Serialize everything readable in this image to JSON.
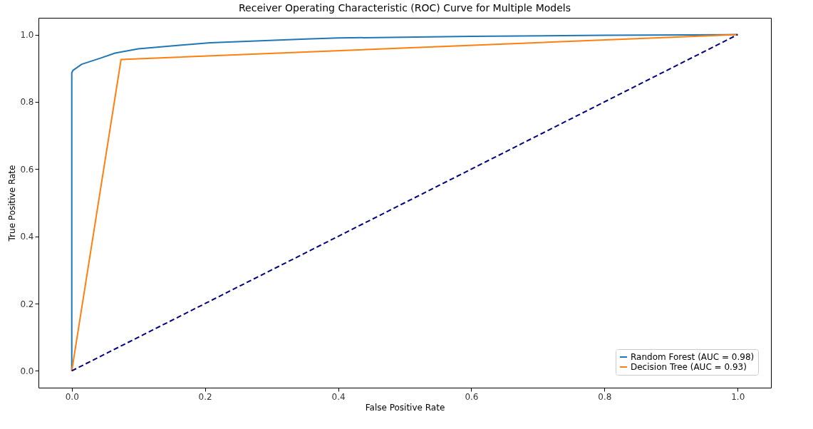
{
  "chart_data": {
    "type": "line",
    "title": "Receiver Operating Characteristic (ROC) Curve for Multiple Models",
    "xlabel": "False Positive Rate",
    "ylabel": "True Positive Rate",
    "xlim": [
      -0.05,
      1.05
    ],
    "ylim": [
      -0.05,
      1.05
    ],
    "xticks": [
      {
        "value": 0,
        "label": "0.0"
      },
      {
        "value": 0.2,
        "label": "0.2"
      },
      {
        "value": 0.4,
        "label": "0.4"
      },
      {
        "value": 0.6,
        "label": "0.6"
      },
      {
        "value": 0.8,
        "label": "0.8"
      },
      {
        "value": 1,
        "label": "1.0"
      }
    ],
    "yticks": [
      {
        "value": 0,
        "label": "0.0"
      },
      {
        "value": 0.2,
        "label": "0.2"
      },
      {
        "value": 0.4,
        "label": "0.4"
      },
      {
        "value": 0.6,
        "label": "0.6"
      },
      {
        "value": 0.8,
        "label": "0.8"
      },
      {
        "value": 1,
        "label": "1.0"
      }
    ],
    "grid": false,
    "legend": "bottom right",
    "marker": "none",
    "series": [
      {
        "name": "Random Forest (AUC = 0.98)",
        "color": "#1f77b4",
        "line_style": "solid",
        "x": [
          0,
          0,
          0.002,
          0.015,
          0.043,
          0.065,
          0.1,
          0.165,
          0.208,
          0.352,
          0.4,
          0.6,
          0.8,
          1
        ],
        "values": [
          0,
          0.887,
          0.894,
          0.912,
          0.93,
          0.945,
          0.958,
          0.969,
          0.976,
          0.987,
          0.99,
          0.995,
          0.998,
          1
        ]
      },
      {
        "name": "Decision Tree (AUC = 0.93)",
        "color": "#ff7f0e",
        "line_style": "solid",
        "x": [
          0,
          0.074,
          1
        ],
        "values": [
          0,
          0.926,
          1
        ]
      },
      {
        "color": "#000080",
        "line_style": "dashed",
        "x": [
          0,
          1
        ],
        "values": [
          0,
          1
        ]
      }
    ]
  }
}
